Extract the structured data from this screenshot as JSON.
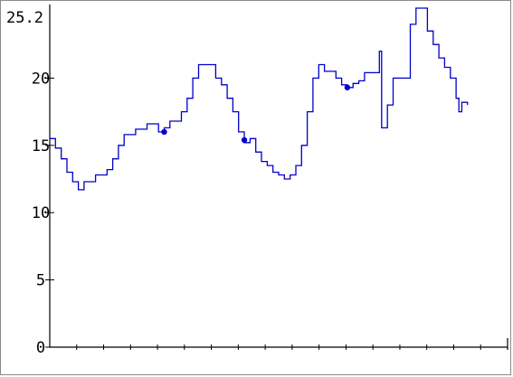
{
  "chart_data": {
    "type": "line",
    "title": "",
    "xlabel": "",
    "ylabel": "",
    "y_max_label": "25.2",
    "ylim": [
      0,
      25.2
    ],
    "xlim": [
      0,
      80
    ],
    "y_ticks": [
      0,
      5,
      10,
      15,
      20
    ],
    "x_tick_count": 17,
    "grid": false,
    "legend": "none",
    "line_color": "#0000cc",
    "series": [
      {
        "values": [
          [
            0,
            15.5
          ],
          [
            1,
            14.8
          ],
          [
            2,
            14.0
          ],
          [
            3,
            13.0
          ],
          [
            4,
            12.3
          ],
          [
            5,
            11.7
          ],
          [
            6,
            12.3
          ],
          [
            8,
            12.8
          ],
          [
            10,
            13.2
          ],
          [
            11,
            14.0
          ],
          [
            12,
            15.0
          ],
          [
            13,
            15.8
          ],
          [
            15,
            16.2
          ],
          [
            17,
            16.6
          ],
          [
            19,
            16.0
          ],
          [
            20,
            16.3
          ],
          [
            21,
            16.8
          ],
          [
            23,
            17.5
          ],
          [
            24,
            18.5
          ],
          [
            25,
            20.0
          ],
          [
            26,
            21.0
          ],
          [
            28,
            21.0
          ],
          [
            29,
            20.0
          ],
          [
            30,
            19.5
          ],
          [
            31,
            18.5
          ],
          [
            32,
            17.5
          ],
          [
            33,
            16.0
          ],
          [
            34,
            15.2
          ],
          [
            35,
            15.5
          ],
          [
            36,
            14.5
          ],
          [
            37,
            13.8
          ],
          [
            38,
            13.5
          ],
          [
            39,
            13.0
          ],
          [
            40,
            12.8
          ],
          [
            41,
            12.5
          ],
          [
            42,
            12.8
          ],
          [
            43,
            13.5
          ],
          [
            44,
            15.0
          ],
          [
            45,
            17.5
          ],
          [
            46,
            20.0
          ],
          [
            47,
            21.0
          ],
          [
            48,
            20.5
          ],
          [
            50,
            20.0
          ],
          [
            51,
            19.5
          ],
          [
            52,
            19.3
          ],
          [
            53,
            19.6
          ],
          [
            54,
            19.8
          ],
          [
            55,
            20.4
          ],
          [
            57,
            20.4
          ],
          [
            57.6,
            22.0
          ],
          [
            58,
            16.3
          ],
          [
            59,
            18.0
          ],
          [
            60,
            20.0
          ],
          [
            62,
            20.0
          ],
          [
            63,
            24.0
          ],
          [
            64,
            25.2
          ],
          [
            65,
            25.2
          ],
          [
            66,
            23.5
          ],
          [
            67,
            22.5
          ],
          [
            68,
            21.5
          ],
          [
            69,
            20.8
          ],
          [
            70,
            20.0
          ],
          [
            71,
            18.5
          ],
          [
            71.5,
            17.5
          ],
          [
            72,
            18.2
          ],
          [
            73,
            18.0
          ]
        ]
      }
    ],
    "markers": [
      [
        20,
        16.0
      ],
      [
        34,
        15.4
      ],
      [
        52,
        19.3
      ]
    ]
  }
}
